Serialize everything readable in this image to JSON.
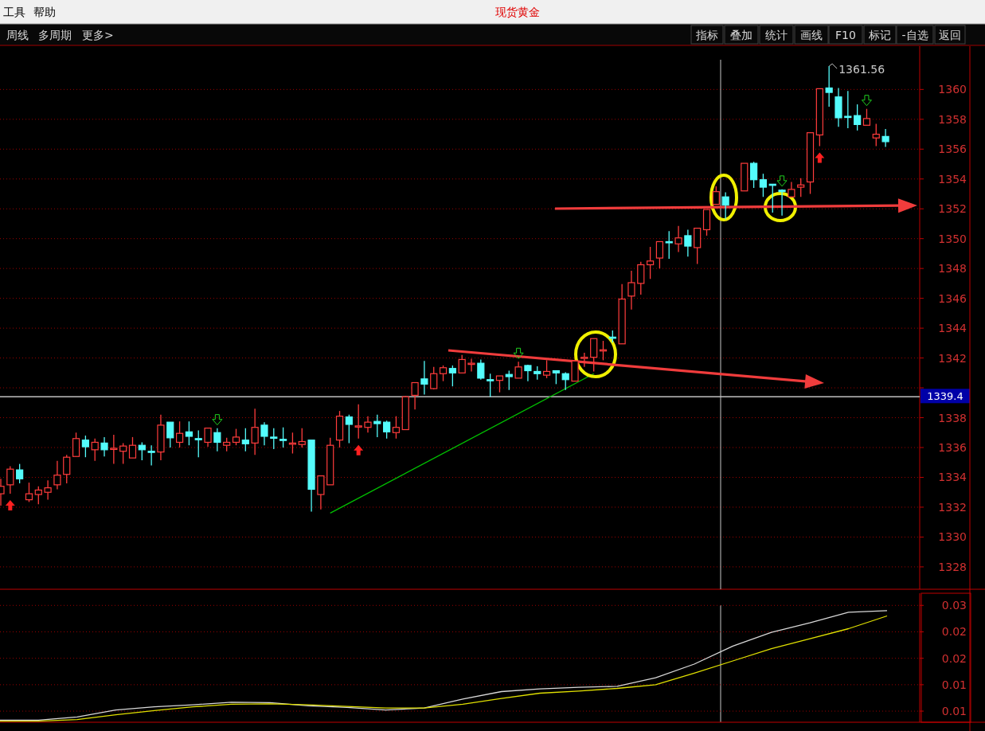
{
  "chart_data": [
    {
      "type": "candlestick",
      "title": "现货黄金",
      "annotations": [
        "工具",
        "帮助",
        "周线",
        "多周期",
        "更多>",
        "指标",
        "叠加",
        "统计",
        "画线",
        "F10",
        "标记",
        "-自选",
        "返回",
        "1361.56"
      ],
      "categories": [
        null,
        null,
        null,
        null,
        null,
        null,
        null,
        null,
        null,
        null,
        null,
        null,
        null,
        null,
        null,
        null,
        null,
        null,
        null,
        null,
        null,
        null,
        null,
        null,
        null,
        null,
        null,
        null,
        null,
        null,
        null,
        null,
        null,
        null,
        null,
        null,
        null,
        null,
        null,
        null,
        null,
        null,
        null,
        null,
        null,
        null,
        null,
        null,
        null,
        null,
        null,
        null,
        null,
        null,
        null,
        null,
        null,
        null,
        null,
        null,
        null,
        null,
        null,
        null,
        null,
        null,
        null,
        null,
        null,
        null,
        null,
        null,
        null,
        null,
        null,
        null,
        null,
        null,
        null,
        null,
        null,
        null,
        null,
        null,
        null,
        null,
        null,
        null,
        null,
        null,
        null,
        null,
        null,
        null,
        null
      ],
      "ohlc": [
        [
          1332.9,
          1333.9,
          1332.1,
          1333.4
        ],
        [
          1333.5,
          1334.75,
          1332.9,
          1334.55
        ],
        [
          1334.5,
          1334.9,
          1333.6,
          1333.9
        ],
        [
          1332.5,
          1333.65,
          1332.35,
          1332.9
        ],
        [
          1332.85,
          1333.4,
          1332.2,
          1333.15
        ],
        [
          1333.0,
          1333.8,
          1332.5,
          1333.3
        ],
        [
          1333.5,
          1335.1,
          1333.2,
          1334.15
        ],
        [
          1334.2,
          1335.5,
          1333.6,
          1335.35
        ],
        [
          1335.4,
          1337.0,
          1335.4,
          1336.6
        ],
        [
          1336.5,
          1336.8,
          1335.35,
          1336.05
        ],
        [
          1335.85,
          1336.6,
          1335.1,
          1336.35
        ],
        [
          1336.3,
          1336.7,
          1335.4,
          1335.85
        ],
        [
          1335.9,
          1336.85,
          1334.9,
          1335.95
        ],
        [
          1335.75,
          1336.3,
          1334.9,
          1336.1
        ],
        [
          1335.3,
          1336.7,
          1335.3,
          1336.15
        ],
        [
          1336.15,
          1336.35,
          1335.15,
          1335.85
        ],
        [
          1335.75,
          1336.15,
          1334.8,
          1335.7
        ],
        [
          1335.7,
          1338.2,
          1335.15,
          1337.5
        ],
        [
          1337.7,
          1337.7,
          1336.0,
          1336.65
        ],
        [
          1336.35,
          1337.75,
          1336.0,
          1336.95
        ],
        [
          1337.05,
          1337.75,
          1336.15,
          1336.75
        ],
        [
          1336.6,
          1337.15,
          1335.35,
          1336.55
        ],
        [
          1336.35,
          1337.3,
          1336.05,
          1337.3
        ],
        [
          1337.0,
          1337.3,
          1335.75,
          1336.35
        ],
        [
          1336.15,
          1336.65,
          1335.75,
          1336.35
        ],
        [
          1336.35,
          1337.25,
          1336.15,
          1336.7
        ],
        [
          1336.5,
          1337.3,
          1335.75,
          1336.25
        ],
        [
          1336.3,
          1338.6,
          1335.5,
          1337.35
        ],
        [
          1337.5,
          1337.7,
          1336.15,
          1336.75
        ],
        [
          1336.7,
          1337.3,
          1335.9,
          1336.65
        ],
        [
          1336.55,
          1337.35,
          1336.0,
          1336.5
        ],
        [
          1336.25,
          1337.0,
          1335.6,
          1336.3
        ],
        [
          1336.2,
          1337.3,
          1336.0,
          1336.4
        ],
        [
          1336.5,
          1336.5,
          1331.7,
          1333.2
        ],
        [
          1332.85,
          1334.1,
          1331.85,
          1334.1
        ],
        [
          1333.5,
          1336.65,
          1333.5,
          1336.15
        ],
        [
          1336.5,
          1338.45,
          1336.0,
          1338.1
        ],
        [
          1338.05,
          1338.2,
          1336.3,
          1337.55
        ],
        [
          1337.4,
          1338.9,
          1336.6,
          1337.45
        ],
        [
          1337.35,
          1338.1,
          1337.0,
          1337.7
        ],
        [
          1337.75,
          1338.2,
          1336.7,
          1337.6
        ],
        [
          1337.7,
          1337.8,
          1336.6,
          1337.05
        ],
        [
          1337.0,
          1338.1,
          1336.6,
          1337.35
        ],
        [
          1337.2,
          1339.45,
          1337.2,
          1339.4
        ],
        [
          1339.5,
          1340.35,
          1338.55,
          1340.35
        ],
        [
          1340.6,
          1341.8,
          1339.55,
          1340.25
        ],
        [
          1339.95,
          1341.4,
          1339.9,
          1340.95
        ],
        [
          1340.95,
          1341.5,
          1340.45,
          1341.35
        ],
        [
          1341.3,
          1341.5,
          1340.1,
          1341.0
        ],
        [
          1341.0,
          1342.2,
          1341.0,
          1341.9
        ],
        [
          1341.6,
          1341.95,
          1341.1,
          1341.65
        ],
        [
          1341.65,
          1341.9,
          1340.55,
          1340.65
        ],
        [
          1340.55,
          1340.95,
          1339.4,
          1340.5
        ],
        [
          1340.5,
          1340.8,
          1339.7,
          1340.8
        ],
        [
          1340.9,
          1341.15,
          1339.85,
          1340.75
        ],
        [
          1340.65,
          1341.75,
          1340.65,
          1341.4
        ],
        [
          1341.5,
          1341.55,
          1340.45,
          1341.15
        ],
        [
          1341.1,
          1341.45,
          1340.55,
          1340.95
        ],
        [
          1340.85,
          1341.85,
          1340.65,
          1341.1
        ],
        [
          1341.15,
          1341.15,
          1340.25,
          1341.0
        ],
        [
          1340.95,
          1341.05,
          1339.85,
          1340.55
        ],
        [
          1340.45,
          1341.85,
          1340.45,
          1341.8
        ],
        [
          1342.0,
          1342.35,
          1341.4,
          1342.05
        ],
        [
          1342.05,
          1343.3,
          1341.1,
          1343.3
        ],
        [
          1342.5,
          1343.15,
          1341.85,
          1342.55
        ],
        [
          1343.4,
          1343.85,
          1343.05,
          1343.35
        ],
        [
          1342.95,
          1346.95,
          1342.95,
          1345.95
        ],
        [
          1346.15,
          1347.85,
          1345.25,
          1347.05
        ],
        [
          1347.0,
          1348.45,
          1346.25,
          1348.25
        ],
        [
          1348.25,
          1349.45,
          1347.3,
          1348.5
        ],
        [
          1348.7,
          1349.8,
          1348.0,
          1349.8
        ],
        [
          1349.8,
          1350.5,
          1348.65,
          1349.75
        ],
        [
          1349.65,
          1350.85,
          1349.1,
          1350.05
        ],
        [
          1350.2,
          1350.6,
          1348.8,
          1349.5
        ],
        [
          1349.4,
          1350.7,
          1348.3,
          1350.7
        ],
        [
          1350.6,
          1351.95,
          1350.2,
          1351.95
        ],
        [
          1352.3,
          1353.5,
          1352.3,
          1353.15
        ],
        [
          1352.8,
          1353.1,
          1351.3,
          1352.25
        ],
        null,
        [
          1353.2,
          1355.05,
          1353.2,
          1355.05
        ],
        [
          1355.05,
          1355.15,
          1353.4,
          1353.95
        ],
        [
          1353.95,
          1354.35,
          1352.8,
          1353.45
        ],
        [
          1353.65,
          1353.65,
          1351.75,
          1353.6
        ],
        [
          1353.25,
          1353.3,
          1351.55,
          1353.15
        ],
        [
          1352.8,
          1353.8,
          1352.8,
          1353.3
        ],
        [
          1353.45,
          1354.05,
          1352.8,
          1353.6
        ],
        [
          1353.8,
          1357.1,
          1353.0,
          1357.1
        ],
        [
          1356.95,
          1360.05,
          1356.2,
          1360.05
        ],
        [
          1360.1,
          1361.56,
          1358.85,
          1359.8
        ],
        [
          1359.5,
          1360.1,
          1357.5,
          1358.1
        ],
        [
          1358.2,
          1359.9,
          1357.4,
          1358.15
        ],
        [
          1358.25,
          1359.0,
          1357.25,
          1357.65
        ],
        [
          1357.6,
          1358.7,
          1357.6,
          1358.05
        ],
        [
          1356.75,
          1357.7,
          1356.2,
          1357.0
        ],
        [
          1356.85,
          1357.35,
          1356.15,
          1356.5
        ]
      ],
      "series": [
        {
          "type": "line",
          "color": "#00c000",
          "values": [
            null,
            null,
            null,
            null,
            null,
            null,
            null,
            null,
            null,
            null,
            null,
            null,
            null,
            null,
            null,
            null,
            null,
            null,
            null,
            null,
            null,
            null,
            null,
            null,
            null,
            null,
            null,
            null,
            null,
            null,
            null,
            null,
            null,
            null,
            null,
            1331.6,
            null,
            null,
            null,
            null,
            null,
            null,
            null,
            null,
            null,
            null,
            null,
            null,
            null,
            null,
            null,
            null,
            null,
            null,
            null,
            null,
            null,
            null,
            null,
            null,
            null,
            null,
            null,
            1340.95,
            null,
            null,
            null,
            null,
            null,
            null,
            null,
            null,
            null,
            null,
            null,
            null,
            null,
            null,
            null,
            null,
            null,
            null,
            null,
            null,
            null,
            null,
            null,
            null,
            null,
            null,
            null,
            null,
            null,
            null,
            null
          ]
        }
      ],
      "ylim": [
        1326.5,
        1362.9
      ],
      "yticks": [
        1328,
        1330,
        1332,
        1334,
        1336,
        1338,
        {
          "value": 1340,
          "label": null
        },
        1342,
        1344,
        1346,
        1348,
        1350,
        1352,
        1354,
        1356,
        1358,
        1360
      ],
      "ref_lines": [
        {
          "axis": "y",
          "value": 1339.4,
          "label": "1339.4",
          "color": "#c0c0c0"
        }
      ],
      "grid": "y"
    },
    {
      "type": "line",
      "categories": [
        null,
        null,
        null,
        null,
        null,
        null,
        null,
        null,
        null,
        null,
        null,
        null,
        null,
        null,
        null,
        null,
        null,
        null,
        null,
        null,
        null,
        null,
        null,
        null
      ],
      "series": [
        {
          "color": "#d8d8d8",
          "values": [
            0.0063,
            0.0063,
            0.0069,
            0.0082,
            0.0088,
            0.0092,
            0.0097,
            0.0096,
            0.009,
            0.0087,
            0.0082,
            0.0086,
            0.0103,
            0.0117,
            0.0122,
            0.0125,
            0.0127,
            0.0143,
            0.0169,
            0.0203,
            0.0229,
            0.0247,
            0.0267,
            0.027
          ]
        },
        {
          "color": "#e0e000",
          "values": [
            0.0061,
            0.0061,
            0.0064,
            0.0073,
            0.0081,
            0.0088,
            0.0093,
            0.0094,
            0.0092,
            0.0089,
            0.0086,
            0.0086,
            0.0093,
            0.0104,
            0.0114,
            0.0118,
            0.0123,
            0.013,
            0.0152,
            0.0175,
            0.0198,
            0.0217,
            0.0236,
            0.026
          ]
        }
      ],
      "ylim": [
        0.0059,
        0.0303
      ],
      "yticks": [
        {
          "value": 0.008,
          "label": "0.01"
        },
        {
          "value": 0.013,
          "label": "0.01"
        },
        {
          "value": 0.018,
          "label": "0.02"
        },
        {
          "value": 0.023,
          "label": "0.02"
        },
        {
          "value": 0.028,
          "label": "0.03"
        }
      ],
      "tick_labels": "y",
      "grid": "y"
    }
  ]
}
